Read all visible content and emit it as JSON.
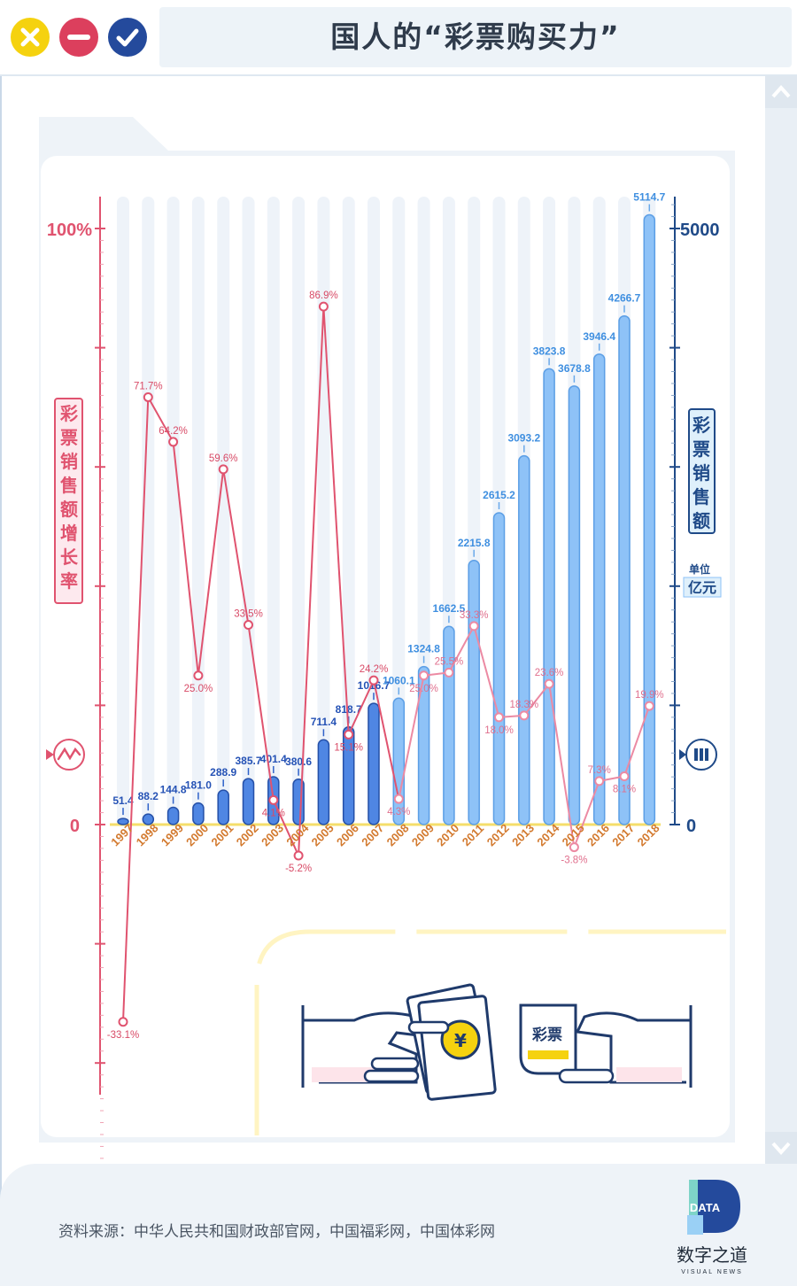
{
  "window": {
    "title": "国人的“彩票购买力”",
    "buttons": [
      {
        "name": "close",
        "color": "#f5d20f",
        "icon": "close-icon"
      },
      {
        "name": "minimize",
        "color": "#dc3f5d",
        "icon": "minus-icon"
      },
      {
        "name": "confirm",
        "color": "#244a9c",
        "icon": "check-icon"
      }
    ]
  },
  "source": "资料来源：中华人民共和国财政部官网，中国福彩网，中国体彩网",
  "logo": {
    "mark": "DATA",
    "name": "数字之道",
    "sub": "VISUAL NEWS"
  },
  "illustration": {
    "ticket_label": "彩票",
    "coin_symbol": "¥"
  },
  "chart_data": {
    "type": "bar+line",
    "categories": [
      "1997",
      "1998",
      "1999",
      "2000",
      "2001",
      "2002",
      "2003",
      "2004",
      "2005",
      "2006",
      "2007",
      "2008",
      "2009",
      "2010",
      "2011",
      "2012",
      "2013",
      "2014",
      "2015",
      "2016",
      "2017",
      "2018"
    ],
    "series": [
      {
        "name": "彩票销售额",
        "type": "bar",
        "axis": "right",
        "unit_label": "单位",
        "unit": "亿元",
        "values": [
          51.4,
          88.2,
          144.8,
          181.0,
          288.9,
          385.7,
          401.4,
          380.6,
          711.4,
          818.7,
          1016.7,
          1060.1,
          1324.8,
          1662.5,
          2215.8,
          2615.2,
          3093.2,
          3823.8,
          3678.8,
          3946.4,
          4266.7,
          5114.7
        ],
        "labels": [
          "51.4",
          "88.2",
          "144.8",
          "181.0",
          "288.9",
          "385.7",
          "401.4",
          "380.6",
          "711.4",
          "818.7",
          "1016.7",
          "1060.1",
          "1324.8",
          "1662.5",
          "2215.8",
          "2615.2",
          "3093.2",
          "3823.8",
          "3678.8",
          "3946.4",
          "4266.7",
          "5114.7"
        ],
        "color_dark": "#2f62c9",
        "color_light": "#8ec2f7"
      },
      {
        "name": "彩票销售额增长率",
        "type": "line",
        "axis": "left",
        "values": [
          -33.1,
          71.7,
          64.2,
          25.0,
          59.6,
          33.5,
          4.1,
          -5.2,
          86.9,
          15.1,
          24.2,
          4.3,
          25.0,
          25.5,
          33.3,
          18.0,
          18.3,
          23.6,
          -3.8,
          7.3,
          8.1,
          19.9
        ],
        "labels": [
          "-33.1%",
          "71.7%",
          "64.2%",
          "25.0%",
          "59.6%",
          "33.5%",
          "4.1%",
          "-5.2%",
          "86.9%",
          "15.1%",
          "24.2%",
          "4.3%",
          "25.0%",
          "25.5%",
          "33.3%",
          "18.0%",
          "18.3%",
          "23.6%",
          "-3.8%",
          "7.3%",
          "8.1%",
          "19.9%"
        ],
        "color_dark": "#e0536f",
        "color_light": "#f19bb0"
      }
    ],
    "left_axis": {
      "title": "彩票销售额增长率",
      "ticks": [
        "100%",
        "0"
      ],
      "ylim": [
        -40,
        100
      ]
    },
    "right_axis": {
      "title": "彩票销售额",
      "ticks": [
        "5000",
        "0"
      ],
      "ylim": [
        0,
        5000
      ]
    },
    "colors": {
      "pink": "#e0536f",
      "navy": "#1f4a88",
      "axis_label_orange": "#d37a2f",
      "baseline": "#f5de6a"
    }
  }
}
